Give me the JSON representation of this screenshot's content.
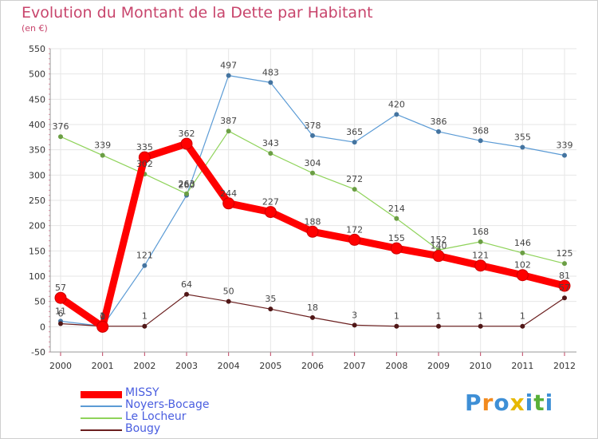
{
  "title": "Evolution du Montant de la Dette par Habitant",
  "subtitle": "(en €)",
  "logo": {
    "text": "Proxiti",
    "colors": [
      "#3e8fd6",
      "#f28a1e",
      "#3e8fd6",
      "#e6b800",
      "#3e8fd6",
      "#58b038",
      "#3e8fd6"
    ]
  },
  "chart_data": {
    "type": "line",
    "title": "Evolution du Montant de la Dette par Habitant",
    "subtitle": "(en €)",
    "xlabel": "",
    "ylabel": "",
    "categories": [
      "2000",
      "2001",
      "2002",
      "2003",
      "2004",
      "2005",
      "2006",
      "2007",
      "2008",
      "2009",
      "2010",
      "2011",
      "2012"
    ],
    "ylim": [
      -50,
      550
    ],
    "yticks": [
      -50,
      0,
      50,
      100,
      150,
      200,
      250,
      300,
      350,
      400,
      450,
      500,
      550
    ],
    "grid": true,
    "legend_position": "bottom-left",
    "series": [
      {
        "name": "Noyers-Bocage",
        "color": "#5b9bd5",
        "values": [
          11,
          1,
          121,
          260,
          497,
          483,
          378,
          365,
          420,
          386,
          368,
          355,
          339
        ]
      },
      {
        "name": "Le Locheur",
        "color": "#8fd35a",
        "values": [
          376,
          339,
          302,
          263,
          387,
          343,
          304,
          272,
          214,
          152,
          168,
          146,
          125
        ]
      },
      {
        "name": "Bougy",
        "color": "#6b1f1f",
        "values": [
          6,
          1,
          1,
          64,
          50,
          35,
          18,
          3,
          1,
          1,
          1,
          1,
          57
        ]
      },
      {
        "name": "MISSY",
        "color": "#ff0000",
        "values": [
          57,
          0,
          335,
          362,
          244,
          227,
          188,
          172,
          155,
          140,
          121,
          102,
          81
        ]
      }
    ]
  }
}
